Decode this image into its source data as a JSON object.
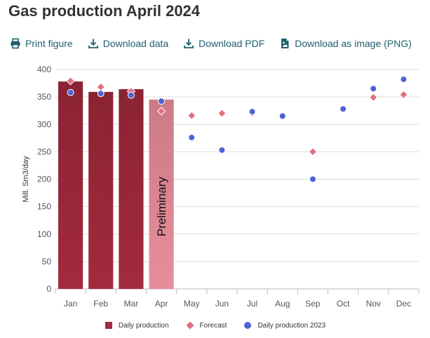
{
  "page": {
    "title": "Gas production April 2024"
  },
  "toolbar": {
    "items": [
      {
        "label": "Print figure",
        "icon": "printer-icon"
      },
      {
        "label": "Download data",
        "icon": "download-icon"
      },
      {
        "label": "Download PDF",
        "icon": "download-icon"
      },
      {
        "label": "Download as image (PNG)",
        "icon": "image-file-icon"
      }
    ]
  },
  "colors": {
    "bar_actual": "#a32a3f",
    "bar_preliminary": "#e68f9b",
    "forecast": "#e0707f",
    "production_2023": "#4f63d6",
    "toolbar": "#1f5e6e"
  },
  "chart_data": {
    "type": "bar",
    "title": "Gas production April 2024",
    "xlabel": "",
    "ylabel": "Mill. Sm3/day",
    "ylim": [
      0,
      400
    ],
    "yticks": [
      0,
      50,
      100,
      150,
      200,
      250,
      300,
      350,
      400
    ],
    "grid": true,
    "legend_position": "bottom",
    "categories": [
      "Jan",
      "Feb",
      "Mar",
      "Apr",
      "May",
      "Jun",
      "Jul",
      "Aug",
      "Sep",
      "Oct",
      "Nov",
      "Dec"
    ],
    "bar_annotation": "Preliminary",
    "series": [
      {
        "name": "Daily production",
        "kind": "bar",
        "values": [
          378,
          359,
          364,
          345,
          null,
          null,
          null,
          null,
          null,
          null,
          null,
          null
        ],
        "preliminary": [
          false,
          false,
          false,
          true,
          false,
          false,
          false,
          false,
          false,
          false,
          false,
          false
        ]
      },
      {
        "name": "Forecast",
        "kind": "diamond",
        "values": [
          379,
          368,
          360,
          324,
          316,
          320,
          321,
          314,
          250,
          328,
          349,
          354
        ]
      },
      {
        "name": "Daily production 2023",
        "kind": "circle",
        "values": [
          358,
          356,
          353,
          342,
          276,
          253,
          323,
          315,
          200,
          328,
          365,
          382
        ]
      }
    ]
  }
}
